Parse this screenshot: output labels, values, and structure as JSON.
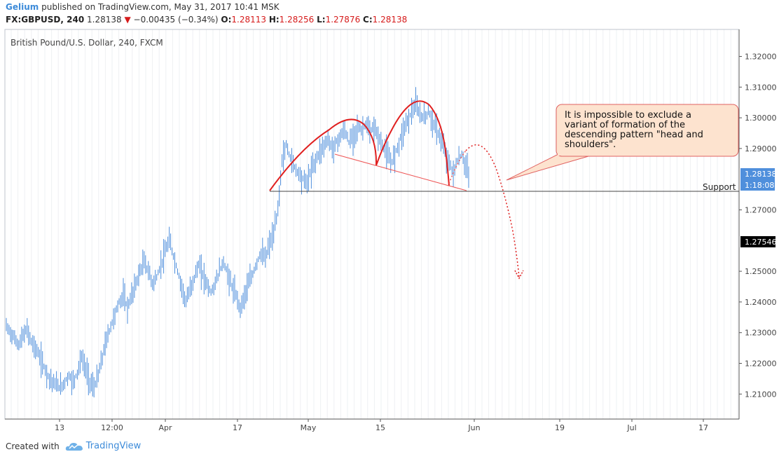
{
  "header": {
    "author": "Gelium",
    "published": "published on TradingView.com, May 31, 2017 10:41 MSK"
  },
  "quote": {
    "symbol": "FX:GBPUSD, 240",
    "last": "1.28138",
    "change": "−0.00435 (−0.34%)",
    "open_label": "O:",
    "open": "1.28113",
    "high_label": "H:",
    "high": "1.28256",
    "low_label": "L:",
    "low": "1.27876",
    "close_label": "C:",
    "close": "1.28138"
  },
  "footer": {
    "created_with": "Created with",
    "brand": "TradingView"
  },
  "colors": {
    "candles": "#4f8fdc",
    "pattern": "#e02020",
    "support": "#333333",
    "callout_bg": "#fde3cf",
    "callout_border": "#e06060",
    "price_tag": "#4f8fdc"
  },
  "chart_data": {
    "type": "line",
    "title": "British Pound/U.S. Dollar, 240, FXCM",
    "x_ticks": [
      "13",
      "12:00",
      "Apr",
      "17",
      "May",
      "15",
      "Jun",
      "19",
      "Jul",
      "17"
    ],
    "y_ticks": [
      "1.32000",
      "1.31000",
      "1.30000",
      "1.29000",
      "1.27000",
      "1.25000",
      "1.24000",
      "1.23000",
      "1.22000",
      "1.21000"
    ],
    "ylim": [
      1.205,
      1.3285
    ],
    "grid": true,
    "series": [
      {
        "values": [
          1.232,
          1.23,
          1.228,
          1.226,
          1.229,
          1.231,
          1.227,
          1.225,
          1.222,
          1.219,
          1.216,
          1.214,
          1.213,
          1.212,
          1.214,
          1.216,
          1.214,
          1.217,
          1.222,
          1.218,
          1.214,
          1.212,
          1.216,
          1.222,
          1.228,
          1.232,
          1.236,
          1.24,
          1.242,
          1.238,
          1.242,
          1.246,
          1.25,
          1.253,
          1.25,
          1.246,
          1.248,
          1.252,
          1.256,
          1.26,
          1.255,
          1.25,
          1.245,
          1.24,
          1.244,
          1.248,
          1.252,
          1.249,
          1.246,
          1.243,
          1.246,
          1.25,
          1.253,
          1.249,
          1.245,
          1.242,
          1.238,
          1.242,
          1.246,
          1.249,
          1.253,
          1.256,
          1.254,
          1.259,
          1.262,
          1.27,
          1.286,
          1.291,
          1.287,
          1.284,
          1.282,
          1.28,
          1.279,
          1.283,
          1.286,
          1.289,
          1.291,
          1.293,
          1.29,
          1.292,
          1.294,
          1.296,
          1.292,
          1.294,
          1.297,
          1.296,
          1.298,
          1.295,
          1.297,
          1.294,
          1.291,
          1.289,
          1.285,
          1.288,
          1.292,
          1.296,
          1.299,
          1.302,
          1.304,
          1.301,
          1.3,
          1.302,
          1.299,
          1.296,
          1.293,
          1.289,
          1.285,
          1.282,
          1.286,
          1.288,
          1.284,
          1.281
        ]
      }
    ],
    "annotations": [
      {
        "label": "Support",
        "price": "1.27546"
      },
      {
        "label": "1.28138"
      },
      {
        "label": "1:18:08"
      },
      {
        "label": "It is impossible to exclude a variant of formation of the descending pattern \"head and shoulders\"."
      }
    ]
  }
}
